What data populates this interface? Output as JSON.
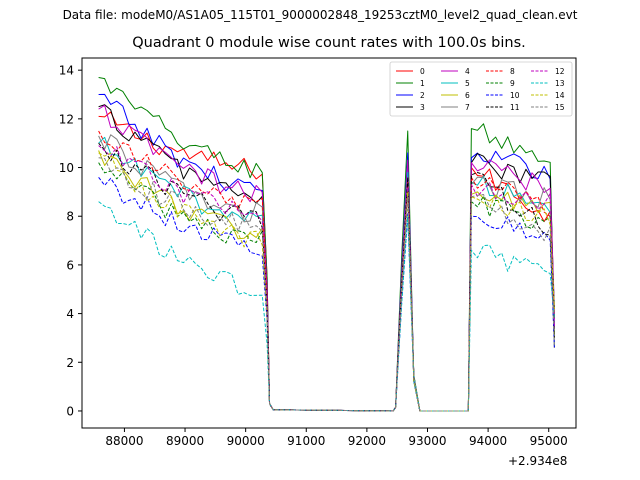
{
  "suptitle": "Data file: modeM0/AS1A05_115T01_9000002848_19253cztM0_level2_quad_clean.evt",
  "chart_data": {
    "type": "line",
    "title": "Quadrant 0 module wise count rates with 100.0s bins.",
    "xlabel": "",
    "ylabel": "",
    "x_offset_label": "+2.934e8",
    "xlim": [
      87300,
      95450
    ],
    "ylim": [
      -0.7,
      14.5
    ],
    "xticks": [
      88000,
      89000,
      90000,
      91000,
      92000,
      93000,
      94000,
      95000
    ],
    "xtick_labels": [
      "88000",
      "89000",
      "90000",
      "91000",
      "92000",
      "93000",
      "94000",
      "95000"
    ],
    "yticks": [
      0,
      2,
      4,
      6,
      8,
      10,
      12,
      14
    ],
    "ytick_labels": [
      "0",
      "2",
      "4",
      "6",
      "8",
      "10",
      "12",
      "14"
    ],
    "legend_location": "upper-right",
    "segments": [
      [
        87574,
        90374
      ],
      [
        92474,
        92874
      ],
      [
        93674,
        95074
      ]
    ],
    "bin_seconds": 100,
    "series": [
      {
        "name": "0",
        "color": "#ff0000",
        "style": "solid",
        "seg1": [
          12.1,
          9.9
        ],
        "seg2_peak": 9.9,
        "seg3": [
          10.0,
          8.0
        ]
      },
      {
        "name": "1",
        "color": "#008000",
        "style": "solid",
        "seg1": [
          13.7,
          9.9
        ],
        "seg2_peak": 11.5,
        "seg3": [
          11.6,
          10.3
        ]
      },
      {
        "name": "2",
        "color": "#0000ff",
        "style": "solid",
        "seg1": [
          13.0,
          9.1
        ],
        "seg2_peak": 10.6,
        "seg3": [
          10.4,
          9.9
        ]
      },
      {
        "name": "3",
        "color": "#000000",
        "style": "solid",
        "seg1": [
          12.5,
          8.8
        ],
        "seg2_peak": 10.1,
        "seg3": [
          10.2,
          9.4
        ]
      },
      {
        "name": "4",
        "color": "#bf00bf",
        "style": "solid",
        "seg1": [
          12.4,
          8.9
        ],
        "seg2_peak": 10.3,
        "seg3": [
          10.2,
          9.2
        ]
      },
      {
        "name": "5",
        "color": "#00bfbf",
        "style": "solid",
        "seg1": [
          11.0,
          7.9
        ],
        "seg2_peak": 9.8,
        "seg3": [
          9.4,
          8.5
        ]
      },
      {
        "name": "6",
        "color": "#bfbf00",
        "style": "solid",
        "seg1": [
          10.7,
          7.3
        ],
        "seg2_peak": 9.3,
        "seg3": [
          8.9,
          8.3
        ]
      },
      {
        "name": "7",
        "color": "#808080",
        "style": "solid",
        "seg1": [
          11.3,
          8.1
        ],
        "seg2_peak": 9.6,
        "seg3": [
          9.3,
          8.7
        ]
      },
      {
        "name": "8",
        "color": "#ff0000",
        "style": "dashed",
        "seg1": [
          11.5,
          8.4
        ],
        "seg2_peak": 9.4,
        "seg3": [
          9.6,
          8.3
        ]
      },
      {
        "name": "9",
        "color": "#008000",
        "style": "dashed",
        "seg1": [
          10.2,
          7.0
        ],
        "seg2_peak": 8.9,
        "seg3": [
          8.6,
          7.7
        ]
      },
      {
        "name": "10",
        "color": "#0000ff",
        "style": "dashed",
        "seg1": [
          9.6,
          6.8
        ],
        "seg2_peak": 8.1,
        "seg3": [
          8.0,
          7.0
        ]
      },
      {
        "name": "11",
        "color": "#000000",
        "style": "dashed",
        "seg1": [
          11.0,
          7.9
        ],
        "seg2_peak": 9.6,
        "seg3": [
          9.7,
          7.5
        ]
      },
      {
        "name": "12",
        "color": "#bf00bf",
        "style": "dashed",
        "seg1": [
          10.9,
          8.1
        ],
        "seg2_peak": 9.2,
        "seg3": [
          9.3,
          8.6
        ]
      },
      {
        "name": "13",
        "color": "#00bfbf",
        "style": "dashed",
        "seg1": [
          8.6,
          5.0
        ],
        "seg2_peak": 8.0,
        "seg3": [
          6.6,
          5.6
        ]
      },
      {
        "name": "14",
        "color": "#bfbf00",
        "style": "dashed",
        "seg1": [
          10.6,
          7.0
        ],
        "seg2_peak": 9.0,
        "seg3": [
          8.8,
          7.9
        ]
      },
      {
        "name": "15",
        "color": "#808080",
        "style": "dashed",
        "seg1": [
          10.4,
          7.5
        ],
        "seg2_peak": 8.8,
        "seg3": [
          8.8,
          7.2
        ]
      }
    ]
  }
}
